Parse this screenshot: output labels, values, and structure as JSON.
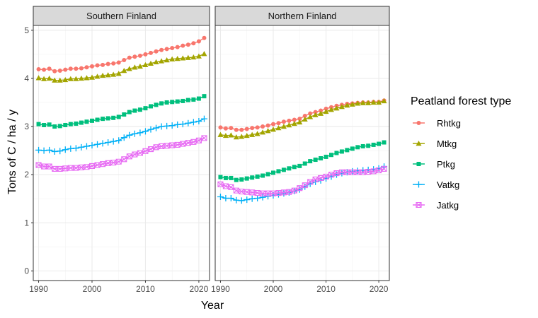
{
  "chart_data": {
    "type": "line",
    "xlabel": "Year",
    "ylabel": "Tons of C / ha / y",
    "xlim": [
      1989,
      2022
    ],
    "ylim": [
      -0.2,
      5.1
    ],
    "xticks": [
      1990,
      2000,
      2010,
      2020
    ],
    "yticks": [
      0,
      1,
      2,
      3,
      4,
      5
    ],
    "grid": true,
    "legend": {
      "title": "Peatland forest type",
      "placement": "right",
      "entries": [
        "Rhtkg",
        "Mtkg",
        "Ptkg",
        "Vatkg",
        "Jatkg"
      ]
    },
    "series_styles": {
      "Rhtkg": {
        "color": "#F8766D",
        "marker": "circle"
      },
      "Mtkg": {
        "color": "#A3A500",
        "marker": "triangle"
      },
      "Ptkg": {
        "color": "#00BF7D",
        "marker": "square"
      },
      "Vatkg": {
        "color": "#00B0F6",
        "marker": "plus"
      },
      "Jatkg": {
        "color": "#E76BF3",
        "marker": "square-cross"
      }
    },
    "x": [
      1990,
      1991,
      1992,
      1993,
      1994,
      1995,
      1996,
      1997,
      1998,
      1999,
      2000,
      2001,
      2002,
      2003,
      2004,
      2005,
      2006,
      2007,
      2008,
      2009,
      2010,
      2011,
      2012,
      2013,
      2014,
      2015,
      2016,
      2017,
      2018,
      2019,
      2020,
      2021
    ],
    "panels": [
      {
        "title": "Southern Finland",
        "series": [
          {
            "name": "Rhtkg",
            "values": [
              4.19,
              4.18,
              4.2,
              4.15,
              4.16,
              4.18,
              4.2,
              4.2,
              4.21,
              4.23,
              4.25,
              4.27,
              4.28,
              4.3,
              4.31,
              4.33,
              4.38,
              4.43,
              4.45,
              4.47,
              4.5,
              4.53,
              4.56,
              4.59,
              4.61,
              4.63,
              4.65,
              4.68,
              4.7,
              4.73,
              4.77,
              4.84
            ]
          },
          {
            "name": "Mtkg",
            "values": [
              4.01,
              3.99,
              4.0,
              3.96,
              3.96,
              3.97,
              3.99,
              3.99,
              4.0,
              4.01,
              4.02,
              4.04,
              4.06,
              4.07,
              4.08,
              4.1,
              4.16,
              4.2,
              4.23,
              4.25,
              4.28,
              4.31,
              4.34,
              4.36,
              4.38,
              4.4,
              4.41,
              4.42,
              4.43,
              4.44,
              4.46,
              4.51
            ]
          },
          {
            "name": "Ptkg",
            "values": [
              3.05,
              3.03,
              3.04,
              3.0,
              3.01,
              3.03,
              3.05,
              3.06,
              3.08,
              3.1,
              3.12,
              3.14,
              3.16,
              3.17,
              3.18,
              3.2,
              3.25,
              3.3,
              3.33,
              3.35,
              3.38,
              3.42,
              3.45,
              3.48,
              3.5,
              3.51,
              3.52,
              3.53,
              3.55,
              3.56,
              3.58,
              3.63
            ]
          },
          {
            "name": "Vatkg",
            "values": [
              2.51,
              2.5,
              2.51,
              2.48,
              2.49,
              2.52,
              2.54,
              2.55,
              2.57,
              2.59,
              2.61,
              2.63,
              2.65,
              2.67,
              2.69,
              2.71,
              2.77,
              2.82,
              2.85,
              2.87,
              2.9,
              2.94,
              2.97,
              3.0,
              3.01,
              3.02,
              3.04,
              3.05,
              3.07,
              3.09,
              3.11,
              3.16
            ]
          },
          {
            "name": "Jatkg",
            "values": [
              2.2,
              2.17,
              2.17,
              2.12,
              2.12,
              2.13,
              2.14,
              2.14,
              2.15,
              2.16,
              2.18,
              2.2,
              2.22,
              2.24,
              2.25,
              2.27,
              2.32,
              2.38,
              2.42,
              2.45,
              2.49,
              2.53,
              2.57,
              2.59,
              2.6,
              2.61,
              2.62,
              2.64,
              2.66,
              2.68,
              2.71,
              2.76
            ]
          }
        ]
      },
      {
        "title": "Northern Finland",
        "series": [
          {
            "name": "Rhtkg",
            "values": [
              2.98,
              2.96,
              2.97,
              2.93,
              2.93,
              2.95,
              2.97,
              2.98,
              3.0,
              3.02,
              3.05,
              3.07,
              3.1,
              3.12,
              3.14,
              3.16,
              3.22,
              3.27,
              3.3,
              3.33,
              3.37,
              3.4,
              3.43,
              3.45,
              3.47,
              3.48,
              3.49,
              3.5,
              3.5,
              3.51,
              3.51,
              3.54
            ]
          },
          {
            "name": "Mtkg",
            "values": [
              2.83,
              2.81,
              2.82,
              2.78,
              2.79,
              2.81,
              2.83,
              2.85,
              2.88,
              2.91,
              2.94,
              2.97,
              3.0,
              3.03,
              3.06,
              3.09,
              3.15,
              3.2,
              3.24,
              3.27,
              3.31,
              3.35,
              3.38,
              3.41,
              3.44,
              3.46,
              3.48,
              3.49,
              3.49,
              3.5,
              3.5,
              3.53
            ]
          },
          {
            "name": "Ptkg",
            "values": [
              1.95,
              1.93,
              1.93,
              1.89,
              1.9,
              1.92,
              1.94,
              1.96,
              1.98,
              2.01,
              2.04,
              2.07,
              2.1,
              2.13,
              2.16,
              2.18,
              2.23,
              2.28,
              2.31,
              2.34,
              2.37,
              2.41,
              2.45,
              2.48,
              2.51,
              2.54,
              2.57,
              2.59,
              2.6,
              2.62,
              2.64,
              2.67
            ]
          },
          {
            "name": "Vatkg",
            "values": [
              1.54,
              1.51,
              1.51,
              1.47,
              1.46,
              1.48,
              1.5,
              1.51,
              1.53,
              1.55,
              1.57,
              1.59,
              1.61,
              1.63,
              1.66,
              1.69,
              1.75,
              1.81,
              1.85,
              1.88,
              1.92,
              1.96,
              2.0,
              2.03,
              2.05,
              2.07,
              2.08,
              2.09,
              2.1,
              2.11,
              2.13,
              2.17
            ]
          },
          {
            "name": "Jatkg",
            "values": [
              1.8,
              1.76,
              1.74,
              1.67,
              1.65,
              1.64,
              1.63,
              1.62,
              1.61,
              1.61,
              1.61,
              1.62,
              1.63,
              1.64,
              1.67,
              1.72,
              1.78,
              1.85,
              1.9,
              1.93,
              1.96,
              2.0,
              2.03,
              2.05,
              2.05,
              2.05,
              2.05,
              2.05,
              2.06,
              2.07,
              2.09,
              2.12
            ]
          }
        ]
      }
    ]
  }
}
